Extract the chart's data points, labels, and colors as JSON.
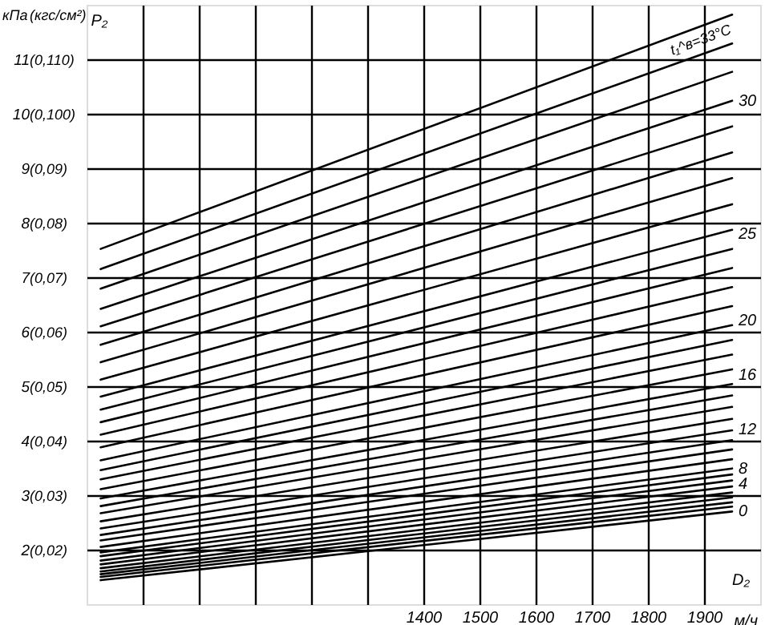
{
  "chart_data": {
    "type": "line",
    "xlabel": "м/ч",
    "ylabel": "кПа",
    "y2label": "(кгс/см²)",
    "annotations": [
      "P₂",
      "D₂"
    ],
    "x": [
      825,
      1950
    ],
    "xlim": [
      800,
      2000
    ],
    "xticks": [
      {
        "value": 900,
        "label": null
      },
      {
        "value": 1000,
        "label": null
      },
      {
        "value": 1100,
        "label": null
      },
      {
        "value": 1200,
        "label": null
      },
      {
        "value": 1300,
        "label": null
      },
      1400,
      1500,
      1600,
      1700,
      1800,
      1900
    ],
    "ylim": [
      1,
      12
    ],
    "yticks": [
      2,
      3,
      4,
      5,
      6,
      7,
      8,
      9,
      10,
      11
    ],
    "y2lim": [
      0.01,
      0.12
    ],
    "y2ticks": [
      {
        "value": 0.02,
        "label": "(0,02)"
      },
      {
        "value": 0.03,
        "label": "(0,03)"
      },
      {
        "value": 0.04,
        "label": "(0,04)"
      },
      {
        "value": 0.05,
        "label": "(0,05)"
      },
      {
        "value": 0.06,
        "label": "(0,06)"
      },
      {
        "value": 0.07,
        "label": "(0,07)"
      },
      {
        "value": 0.08,
        "label": "(0,08)"
      },
      {
        "value": 0.09,
        "label": "(0,09)"
      },
      {
        "value": 0.1,
        "label": "(0,100)"
      },
      {
        "value": 0.11,
        "label": "(0,110)"
      }
    ],
    "grid": true,
    "series": [
      {
        "name": "0",
        "color": "#000000",
        "values": [
          1.44,
          2.7
        ]
      },
      {
        "color": "#000000",
        "values": [
          1.5,
          2.79
        ]
      },
      {
        "color": "#000000",
        "values": [
          1.55,
          2.87
        ]
      },
      {
        "color": "#000000",
        "values": [
          1.6,
          2.96
        ]
      },
      {
        "name": "4",
        "color": "#000000",
        "values": [
          1.66,
          3.05
        ]
      },
      {
        "color": "#000000",
        "values": [
          1.73,
          3.16
        ]
      },
      {
        "color": "#000000",
        "values": [
          1.8,
          3.27
        ]
      },
      {
        "color": "#000000",
        "values": [
          1.88,
          3.38
        ]
      },
      {
        "name": "8",
        "color": "#000000",
        "values": [
          1.95,
          3.49
        ]
      },
      {
        "color": "#000000",
        "values": [
          2.05,
          3.66
        ]
      },
      {
        "color": "#000000",
        "values": [
          2.17,
          3.84
        ]
      },
      {
        "color": "#000000",
        "values": [
          2.27,
          4.01
        ]
      },
      {
        "name": "12",
        "color": "#000000",
        "values": [
          2.39,
          4.19
        ]
      },
      {
        "color": "#000000",
        "values": [
          2.52,
          4.4
        ]
      },
      {
        "color": "#000000",
        "values": [
          2.67,
          4.62
        ]
      },
      {
        "color": "#000000",
        "values": [
          2.8,
          4.83
        ]
      },
      {
        "name": "16",
        "color": "#000000",
        "values": [
          2.94,
          5.04
        ]
      },
      {
        "color": "#000000",
        "values": [
          3.11,
          5.31
        ]
      },
      {
        "color": "#000000",
        "values": [
          3.29,
          5.58
        ]
      },
      {
        "color": "#000000",
        "values": [
          3.46,
          5.85
        ]
      },
      {
        "name": "20",
        "color": "#000000",
        "values": [
          3.64,
          6.12
        ]
      },
      {
        "color": "#000000",
        "values": [
          3.88,
          6.47
        ]
      },
      {
        "color": "#000000",
        "values": [
          4.11,
          6.82
        ]
      },
      {
        "color": "#000000",
        "values": [
          4.34,
          7.17
        ]
      },
      {
        "color": "#000000",
        "values": [
          4.57,
          7.52
        ]
      },
      {
        "name": "25",
        "color": "#000000",
        "values": [
          4.81,
          7.87
        ]
      },
      {
        "color": "#000000",
        "values": [
          5.12,
          8.34
        ]
      },
      {
        "color": "#000000",
        "values": [
          5.44,
          8.82
        ]
      },
      {
        "color": "#000000",
        "values": [
          5.76,
          9.29
        ]
      },
      {
        "color": "#000000",
        "values": [
          6.1,
          9.77
        ]
      },
      {
        "name": "30",
        "color": "#000000",
        "values": [
          6.42,
          10.24
        ]
      },
      {
        "color": "#000000",
        "values": [
          6.79,
          10.77
        ]
      },
      {
        "color": "#000000",
        "values": [
          7.15,
          11.29
        ]
      },
      {
        "name": "t₁^в=33°C",
        "color": "#000000",
        "values": [
          7.52,
          11.82
        ]
      }
    ]
  }
}
